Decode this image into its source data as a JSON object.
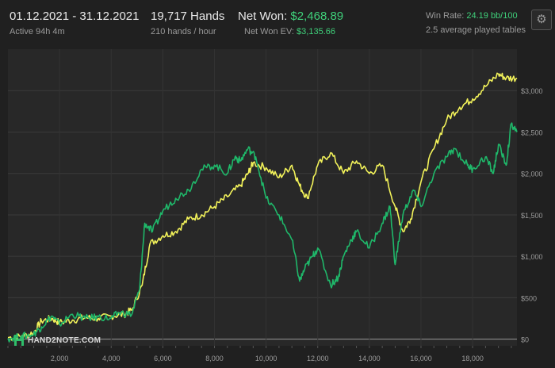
{
  "header": {
    "date_range": "01.12.2021 - 31.12.2021",
    "active": "Active 94h 4m",
    "hands": "19,717 Hands",
    "hands_rate": "210 hands / hour",
    "net_won_label": "Net Won:",
    "net_won_value": "$2,468.89",
    "net_won_ev_label": "Net Won  EV:",
    "net_won_ev_value": "$3,135.66",
    "win_rate_label": "Win Rate:",
    "win_rate_value": "24.19 bb/100",
    "tables": "2.5 average played tables",
    "settings_icon": "gear-icon"
  },
  "logo": {
    "text": "HAND2NOTE.COM"
  },
  "colors": {
    "net_won_ev": "#f2f25a",
    "net_won": "#1fb86a",
    "accent": "#3fd07a",
    "background": "#202020"
  },
  "chart_data": {
    "type": "line",
    "x_ticks": [
      "2,000",
      "4,000",
      "6,000",
      "8,000",
      "10,000",
      "12,000",
      "14,000",
      "16,000",
      "18,000"
    ],
    "y_ticks": [
      "$0",
      "$500",
      "$1,000",
      "$1,500",
      "$2,000",
      "$2,500",
      "$3,000"
    ],
    "xlim": [
      0,
      19717
    ],
    "ylim": [
      -80,
      3500
    ],
    "grid": true,
    "series": [
      {
        "color": "#f2f25a",
        "x": [
          0,
          500,
          1000,
          1300,
          1700,
          2000,
          2500,
          3000,
          3500,
          4000,
          4500,
          4800,
          5200,
          5500,
          6000,
          6500,
          7000,
          7500,
          8000,
          8500,
          9000,
          9300,
          9500,
          10000,
          10500,
          11000,
          11300,
          11600,
          12000,
          12500,
          13000,
          13500,
          14000,
          14500,
          15000,
          15300,
          15600,
          16000,
          16500,
          17000,
          17500,
          18000,
          18500,
          19000,
          19300,
          19717
        ],
        "y": [
          20,
          30,
          80,
          220,
          250,
          200,
          230,
          260,
          250,
          280,
          300,
          350,
          650,
          1150,
          1250,
          1300,
          1450,
          1500,
          1600,
          1720,
          1850,
          2000,
          2130,
          2070,
          1950,
          2100,
          1850,
          1700,
          2100,
          2250,
          2000,
          2150,
          2000,
          2100,
          1600,
          1300,
          1450,
          1900,
          2300,
          2650,
          2800,
          2900,
          3050,
          3200,
          3150,
          3150
        ]
      },
      {
        "color": "#1fb86a",
        "x": [
          0,
          500,
          1000,
          1300,
          1700,
          2000,
          2500,
          3000,
          3500,
          4000,
          4300,
          4800,
          5100,
          5300,
          5600,
          6000,
          6500,
          7000,
          7500,
          8000,
          8500,
          8800,
          9000,
          9300,
          9600,
          10000,
          10500,
          11000,
          11300,
          11500,
          11800,
          12000,
          12500,
          12800,
          13000,
          13300,
          13500,
          14000,
          14500,
          14800,
          15000,
          15300,
          15700,
          16000,
          16500,
          17000,
          17300,
          17800,
          18000,
          18500,
          18800,
          19000,
          19300,
          19500,
          19717
        ],
        "y": [
          10,
          30,
          60,
          150,
          280,
          180,
          300,
          250,
          270,
          250,
          320,
          300,
          600,
          1400,
          1300,
          1550,
          1700,
          1800,
          2050,
          2100,
          2000,
          2200,
          2150,
          2300,
          2200,
          1700,
          1500,
          1200,
          700,
          850,
          1000,
          1100,
          650,
          750,
          1000,
          1200,
          1300,
          1100,
          1400,
          1600,
          900,
          1500,
          1800,
          1600,
          2000,
          2200,
          2300,
          2100,
          2050,
          2200,
          2000,
          2350,
          2100,
          2600,
          2500
        ]
      }
    ]
  }
}
